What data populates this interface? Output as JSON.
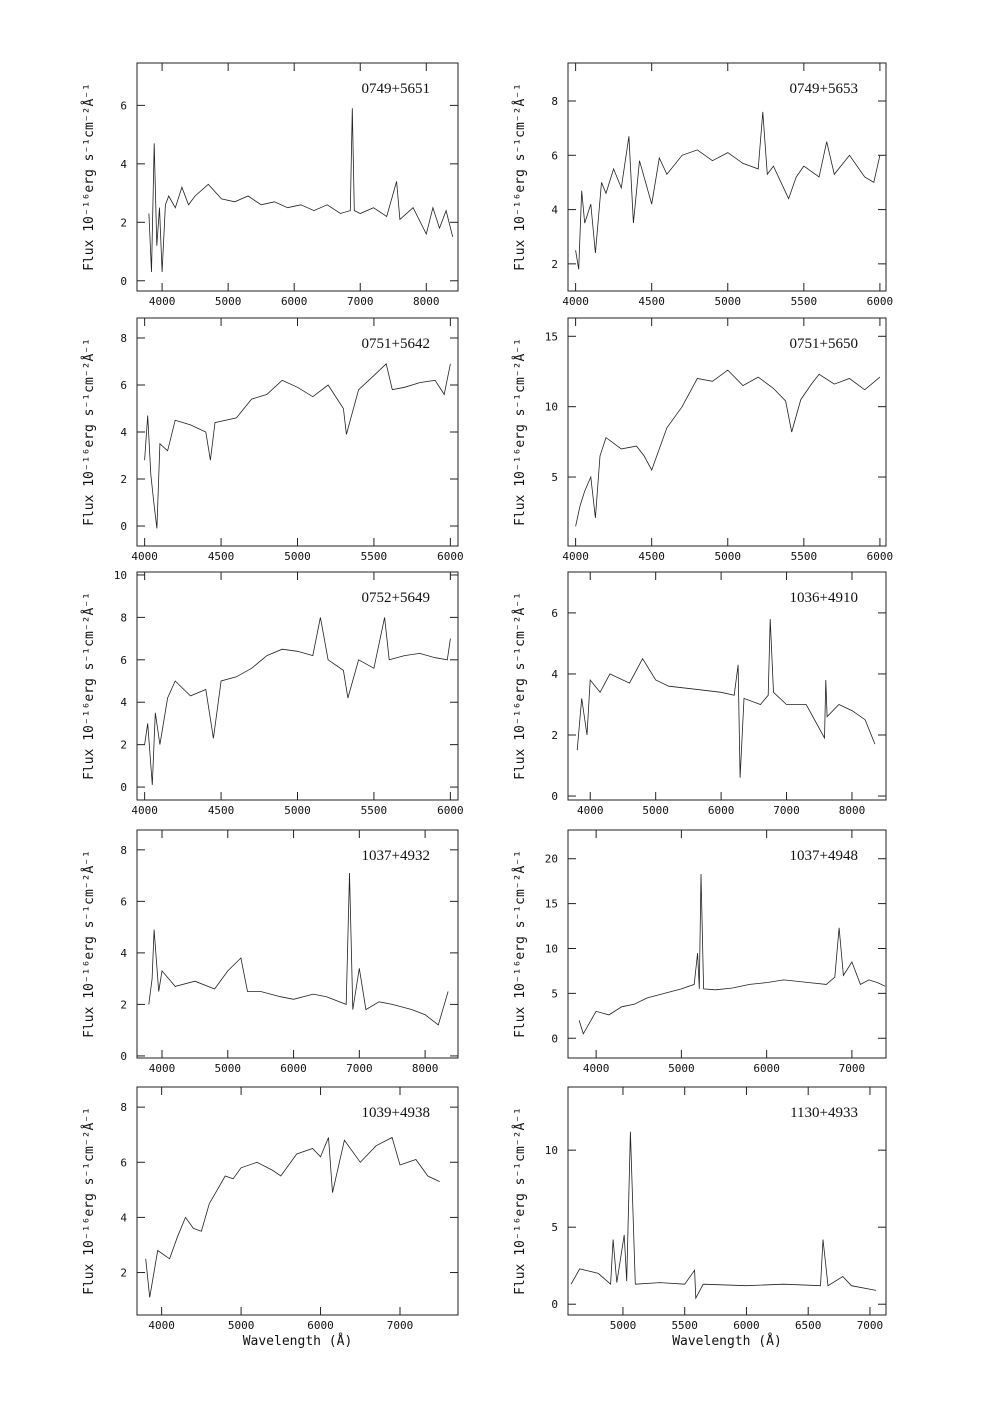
{
  "chart_data": [
    {
      "type": "line",
      "title": "0749+5651",
      "y_label": "Flux  10⁻¹⁶erg s⁻¹cm⁻²Å⁻¹",
      "color": "#222222",
      "x": [
        3800,
        3840,
        3880,
        3920,
        3960,
        4000,
        4050,
        4100,
        4200,
        4300,
        4400,
        4500,
        4700,
        4900,
        5100,
        5300,
        5500,
        5700,
        5900,
        6100,
        6300,
        6500,
        6700,
        6850,
        6880,
        6910,
        7000,
        7200,
        7400,
        7550,
        7600,
        7800,
        8000,
        8100,
        8200,
        8300,
        8400
      ],
      "values": [
        2.3,
        0.3,
        4.7,
        1.2,
        2.5,
        0.3,
        2.6,
        2.9,
        2.5,
        3.2,
        2.6,
        2.9,
        3.3,
        2.8,
        2.7,
        2.9,
        2.6,
        2.7,
        2.5,
        2.6,
        2.4,
        2.6,
        2.3,
        2.4,
        5.9,
        2.4,
        2.3,
        2.5,
        2.2,
        3.4,
        2.1,
        2.5,
        1.6,
        2.5,
        1.8,
        2.4,
        1.5
      ],
      "xlim": [
        3620,
        8480
      ],
      "ylim": [
        -0.35,
        7.45
      ],
      "xticks": [
        4000,
        5000,
        6000,
        7000,
        8000
      ],
      "yticks": [
        0,
        2,
        4,
        6
      ]
    },
    {
      "type": "line",
      "title": "0749+5653",
      "y_label": "Flux  10⁻¹⁶erg s⁻¹cm⁻²Å⁻¹",
      "color": "#222222",
      "x": [
        4000,
        4020,
        4040,
        4060,
        4100,
        4130,
        4170,
        4200,
        4250,
        4300,
        4350,
        4380,
        4420,
        4500,
        4550,
        4600,
        4700,
        4800,
        4900,
        5000,
        5100,
        5200,
        5230,
        5260,
        5300,
        5400,
        5450,
        5500,
        5600,
        5650,
        5700,
        5800,
        5900,
        5960,
        6000
      ],
      "values": [
        2.5,
        1.8,
        4.7,
        3.5,
        4.2,
        2.4,
        5.0,
        4.6,
        5.5,
        4.8,
        6.7,
        3.5,
        5.8,
        4.2,
        5.9,
        5.3,
        6.0,
        6.2,
        5.8,
        6.1,
        5.7,
        5.5,
        7.6,
        5.3,
        5.6,
        4.4,
        5.2,
        5.6,
        5.2,
        6.5,
        5.3,
        6.0,
        5.2,
        5.0,
        6.0
      ],
      "xlim": [
        3950,
        6040
      ],
      "ylim": [
        1.0,
        9.4
      ],
      "xticks": [
        4000,
        4500,
        5000,
        5500,
        6000
      ],
      "yticks": [
        2,
        4,
        6,
        8
      ]
    },
    {
      "type": "line",
      "title": "0751+5642",
      "y_label": "Flux  10⁻¹⁶erg s⁻¹cm⁻²Å⁻¹",
      "color": "#222222",
      "x": [
        4000,
        4020,
        4040,
        4060,
        4080,
        4100,
        4150,
        4200,
        4300,
        4400,
        4430,
        4460,
        4600,
        4700,
        4800,
        4900,
        5000,
        5100,
        5200,
        5300,
        5320,
        5400,
        5500,
        5580,
        5620,
        5700,
        5800,
        5900,
        5960,
        6000
      ],
      "values": [
        2.8,
        4.7,
        2.2,
        1.0,
        -0.1,
        3.5,
        3.2,
        4.5,
        4.3,
        4.0,
        2.8,
        4.4,
        4.6,
        5.4,
        5.6,
        6.2,
        5.9,
        5.5,
        6.0,
        5.0,
        3.9,
        5.8,
        6.4,
        6.9,
        5.8,
        5.9,
        6.1,
        6.2,
        5.6,
        6.9
      ],
      "xlim": [
        3950,
        6050
      ],
      "ylim": [
        -0.85,
        8.85
      ],
      "xticks": [
        4000,
        4500,
        5000,
        5500,
        6000
      ],
      "yticks": [
        0,
        2,
        4,
        6,
        8
      ]
    },
    {
      "type": "line",
      "title": "0751+5650",
      "y_label": "Flux  10⁻¹⁶erg s⁻¹cm⁻²Å⁻¹",
      "color": "#222222",
      "x": [
        4000,
        4030,
        4060,
        4100,
        4130,
        4160,
        4200,
        4300,
        4400,
        4450,
        4500,
        4600,
        4700,
        4800,
        4900,
        5000,
        5100,
        5200,
        5300,
        5380,
        5420,
        5480,
        5550,
        5600,
        5700,
        5800,
        5900,
        6000
      ],
      "values": [
        1.5,
        3.0,
        4.0,
        5.0,
        2.1,
        6.5,
        7.8,
        7.0,
        7.2,
        6.5,
        5.5,
        8.5,
        10.0,
        12.0,
        11.8,
        12.6,
        11.5,
        12.1,
        11.3,
        10.4,
        8.2,
        10.5,
        11.6,
        12.3,
        11.6,
        12.0,
        11.2,
        12.1
      ],
      "xlim": [
        3950,
        6040
      ],
      "ylim": [
        0.1,
        16.3
      ],
      "xticks": [
        4000,
        4500,
        5000,
        5500,
        6000
      ],
      "yticks": [
        5,
        10,
        15
      ]
    },
    {
      "type": "line",
      "title": "0752+5649",
      "y_label": "Flux  10⁻¹⁶erg s⁻¹cm⁻²Å⁻¹",
      "color": "#222222",
      "x": [
        4000,
        4020,
        4050,
        4070,
        4100,
        4150,
        4200,
        4300,
        4400,
        4450,
        4500,
        4600,
        4700,
        4800,
        4900,
        5000,
        5100,
        5150,
        5200,
        5300,
        5330,
        5400,
        5500,
        5570,
        5600,
        5700,
        5800,
        5900,
        5980,
        6000
      ],
      "values": [
        2.0,
        3.0,
        0.1,
        3.5,
        2.0,
        4.2,
        5.0,
        4.3,
        4.6,
        2.3,
        5.0,
        5.2,
        5.6,
        6.2,
        6.5,
        6.4,
        6.2,
        8.0,
        6.0,
        5.5,
        4.2,
        6.0,
        5.6,
        8.0,
        6.0,
        6.2,
        6.3,
        6.1,
        6.0,
        7.0
      ],
      "xlim": [
        3950,
        6050
      ],
      "ylim": [
        -0.61,
        10.14
      ],
      "xticks": [
        4000,
        4500,
        5000,
        5500,
        6000
      ],
      "yticks": [
        0,
        2,
        4,
        6,
        8,
        10
      ]
    },
    {
      "type": "line",
      "title": "1036+4910",
      "y_label": "Flux  10⁻¹⁶erg s⁻¹cm⁻²Å⁻¹",
      "color": "#222222",
      "x": [
        3800,
        3870,
        3950,
        4000,
        4150,
        4300,
        4600,
        4800,
        5000,
        5200,
        5600,
        6000,
        6200,
        6260,
        6290,
        6350,
        6600,
        6720,
        6750,
        6800,
        7000,
        7300,
        7580,
        7600,
        7620,
        7800,
        8000,
        8200,
        8350
      ],
      "values": [
        1.5,
        3.2,
        2.0,
        3.8,
        3.4,
        4.0,
        3.7,
        4.5,
        3.8,
        3.6,
        3.5,
        3.4,
        3.3,
        4.3,
        0.6,
        3.2,
        3.0,
        3.3,
        5.8,
        3.4,
        3.0,
        3.0,
        1.9,
        3.8,
        2.6,
        3.0,
        2.8,
        2.5,
        1.7
      ],
      "xlim": [
        3660,
        8520
      ],
      "ylim": [
        -0.13,
        7.34
      ],
      "xticks": [
        4000,
        5000,
        6000,
        7000,
        8000
      ],
      "yticks": [
        0,
        2,
        4,
        6
      ]
    },
    {
      "type": "line",
      "title": "1037+4932",
      "y_label": "Flux  10⁻¹⁶erg s⁻¹cm⁻²Å⁻¹",
      "color": "#222222",
      "x": [
        3800,
        3850,
        3880,
        3950,
        4000,
        4200,
        4500,
        4800,
        5000,
        5200,
        5300,
        5500,
        5800,
        6000,
        6300,
        6500,
        6800,
        6850,
        6900,
        7000,
        7100,
        7300,
        7500,
        7800,
        8000,
        8200,
        8350
      ],
      "values": [
        2.0,
        3.0,
        4.9,
        2.5,
        3.3,
        2.7,
        2.9,
        2.6,
        3.3,
        3.8,
        2.5,
        2.5,
        2.3,
        2.2,
        2.4,
        2.3,
        2.0,
        7.1,
        1.8,
        3.4,
        1.8,
        2.1,
        2.0,
        1.8,
        1.6,
        1.2,
        2.5
      ],
      "xlim": [
        3620,
        8500
      ],
      "ylim": [
        -0.08,
        8.77
      ],
      "xticks": [
        4000,
        5000,
        6000,
        7000,
        8000
      ],
      "yticks": [
        0,
        2,
        4,
        6,
        8
      ]
    },
    {
      "type": "line",
      "title": "1037+4948",
      "y_label": "Flux  10⁻¹⁶erg s⁻¹cm⁻²Å⁻¹",
      "color": "#222222",
      "x": [
        3800,
        3850,
        4000,
        4150,
        4300,
        4450,
        4600,
        4800,
        5000,
        5150,
        5190,
        5210,
        5230,
        5260,
        5400,
        5600,
        5800,
        6000,
        6200,
        6500,
        6700,
        6800,
        6850,
        6900,
        7000,
        7100,
        7200,
        7300,
        7390
      ],
      "values": [
        2.0,
        0.5,
        3.0,
        2.6,
        3.5,
        3.8,
        4.5,
        5.0,
        5.5,
        6.0,
        9.5,
        5.5,
        18.3,
        5.5,
        5.4,
        5.6,
        6.0,
        6.2,
        6.5,
        6.2,
        6.0,
        6.8,
        12.3,
        7.0,
        8.5,
        6.0,
        6.5,
        6.2,
        5.8
      ],
      "xlim": [
        3670,
        7400
      ],
      "ylim": [
        -2.2,
        23.2
      ],
      "xticks": [
        4000,
        5000,
        6000,
        7000
      ],
      "yticks": [
        0,
        5,
        10,
        15,
        20
      ]
    },
    {
      "type": "line",
      "title": "1039+4938",
      "y_label": "Flux  10⁻¹⁶erg s⁻¹cm⁻²Å⁻¹",
      "x_label": "Wavelength (Å)",
      "color": "#222222",
      "x": [
        3800,
        3850,
        3950,
        4100,
        4200,
        4300,
        4400,
        4500,
        4600,
        4700,
        4800,
        4900,
        5000,
        5200,
        5400,
        5500,
        5700,
        5900,
        6000,
        6100,
        6150,
        6300,
        6500,
        6700,
        6900,
        7000,
        7200,
        7350,
        7500
      ],
      "values": [
        2.5,
        1.1,
        2.8,
        2.5,
        3.3,
        4.0,
        3.6,
        3.5,
        4.5,
        5.0,
        5.5,
        5.4,
        5.8,
        6.0,
        5.7,
        5.5,
        6.3,
        6.5,
        6.2,
        6.9,
        4.9,
        6.8,
        6.0,
        6.6,
        6.9,
        5.9,
        6.1,
        5.5,
        5.3
      ],
      "xlim": [
        3690,
        7730
      ],
      "ylim": [
        0.46,
        8.73
      ],
      "xticks": [
        4000,
        5000,
        6000,
        7000
      ],
      "yticks": [
        2,
        4,
        6,
        8
      ]
    },
    {
      "type": "line",
      "title": "1130+4933",
      "y_label": "Flux  10⁻¹⁶erg s⁻¹cm⁻²Å⁻¹",
      "x_label": "Wavelength (Å)",
      "color": "#222222",
      "x": [
        4580,
        4650,
        4800,
        4900,
        4920,
        4950,
        5010,
        5030,
        5060,
        5100,
        5300,
        5500,
        5580,
        5590,
        5650,
        6000,
        6300,
        6600,
        6620,
        6660,
        6780,
        6850,
        7050
      ],
      "values": [
        1.3,
        2.3,
        2.0,
        1.3,
        4.2,
        1.4,
        4.5,
        1.5,
        11.2,
        1.3,
        1.4,
        1.3,
        2.2,
        0.4,
        1.3,
        1.2,
        1.3,
        1.2,
        4.2,
        1.2,
        1.8,
        1.2,
        0.9
      ],
      "xlim": [
        4555,
        7130
      ],
      "ylim": [
        -0.7,
        14.1
      ],
      "xticks": [
        5000,
        5500,
        6000,
        6500,
        7000
      ],
      "yticks": [
        0,
        5,
        10
      ]
    }
  ]
}
